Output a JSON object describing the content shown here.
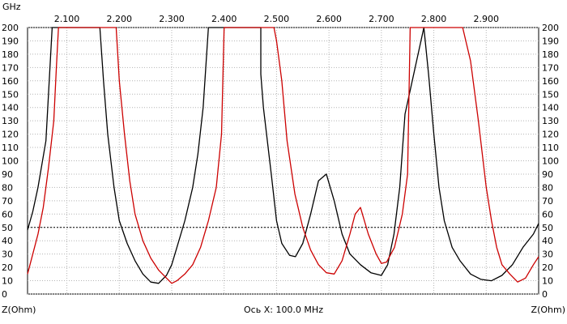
{
  "chart_data": {
    "type": "line",
    "title": "",
    "x_unit_label": "GHz",
    "x_scale_text": "Ось X: 100.0 MHz",
    "y_unit_label": "Z(Ohm)",
    "xlim": [
      2.025,
      3.0
    ],
    "ylim": [
      0,
      200
    ],
    "x_ticks": [
      2.1,
      2.2,
      2.3,
      2.4,
      2.5,
      2.6,
      2.7,
      2.8,
      2.9
    ],
    "x_tick_labels": [
      "2.100",
      "2.200",
      "2.300",
      "2.400",
      "2.500",
      "2.600",
      "2.700",
      "2.800",
      "2.900"
    ],
    "y_ticks": [
      0,
      10,
      20,
      30,
      40,
      50,
      60,
      70,
      80,
      90,
      100,
      110,
      120,
      130,
      140,
      150,
      160,
      170,
      180,
      190,
      200
    ],
    "y_tick_labels": [
      "0",
      "10",
      "20",
      "30",
      "40",
      "50",
      "60",
      "70",
      "80",
      "90",
      "100",
      "110",
      "120",
      "130",
      "140",
      "150",
      "160",
      "170",
      "180",
      "190",
      "200"
    ],
    "reference_line_y": 50,
    "grid": true,
    "legend": "none",
    "series": [
      {
        "color": "#000000",
        "x": [
          2.025,
          2.035,
          2.045,
          2.06,
          2.072,
          2.163,
          2.17,
          2.178,
          2.19,
          2.2,
          2.215,
          2.23,
          2.245,
          2.26,
          2.275,
          2.29,
          2.3,
          2.31,
          2.325,
          2.34,
          2.35,
          2.36,
          2.37,
          2.37,
          2.37,
          2.47,
          2.47,
          2.475,
          2.49,
          2.5,
          2.51,
          2.525,
          2.536,
          2.55,
          2.565,
          2.58,
          2.595,
          2.61,
          2.625,
          2.64,
          2.66,
          2.68,
          2.7,
          2.712,
          2.724,
          2.735,
          2.745,
          2.781,
          2.79,
          2.8,
          2.81,
          2.82,
          2.835,
          2.85,
          2.87,
          2.89,
          2.91,
          2.93,
          2.95,
          2.97,
          2.99,
          3.0
        ],
        "y": [
          48,
          62,
          80,
          115,
          200,
          200,
          160,
          120,
          80,
          55,
          38,
          25,
          15,
          9,
          8,
          14,
          22,
          35,
          55,
          80,
          105,
          140,
          200,
          200,
          200,
          200,
          165,
          140,
          90,
          55,
          38,
          29,
          28,
          38,
          60,
          85,
          90,
          70,
          45,
          30,
          22,
          16,
          14,
          22,
          45,
          80,
          135,
          200,
          165,
          120,
          80,
          55,
          35,
          25,
          15,
          11,
          10,
          14,
          22,
          35,
          45,
          53
        ]
      },
      {
        "color": "#cc0000",
        "x": [
          2.025,
          2.035,
          2.045,
          2.055,
          2.065,
          2.075,
          2.08,
          2.084,
          2.194,
          2.2,
          2.21,
          2.22,
          2.23,
          2.245,
          2.26,
          2.275,
          2.29,
          2.3,
          2.31,
          2.325,
          2.34,
          2.355,
          2.37,
          2.385,
          2.395,
          2.4,
          2.495,
          2.5,
          2.51,
          2.52,
          2.535,
          2.55,
          2.565,
          2.58,
          2.595,
          2.61,
          2.625,
          2.64,
          2.65,
          2.66,
          2.675,
          2.69,
          2.7,
          2.71,
          2.725,
          2.74,
          2.75,
          2.755,
          2.855,
          2.87,
          2.885,
          2.9,
          2.91,
          2.92,
          2.93,
          2.945,
          2.96,
          2.975,
          2.99,
          3.0
        ],
        "y": [
          15,
          30,
          45,
          65,
          95,
          130,
          170,
          200,
          200,
          160,
          120,
          85,
          60,
          40,
          27,
          18,
          12,
          8,
          10,
          15,
          22,
          35,
          55,
          80,
          120,
          200,
          200,
          190,
          160,
          115,
          75,
          50,
          33,
          22,
          16,
          15,
          25,
          45,
          60,
          65,
          45,
          30,
          23,
          24,
          35,
          60,
          90,
          200,
          200,
          175,
          130,
          80,
          55,
          35,
          22,
          15,
          9,
          12,
          22,
          28
        ]
      }
    ]
  }
}
